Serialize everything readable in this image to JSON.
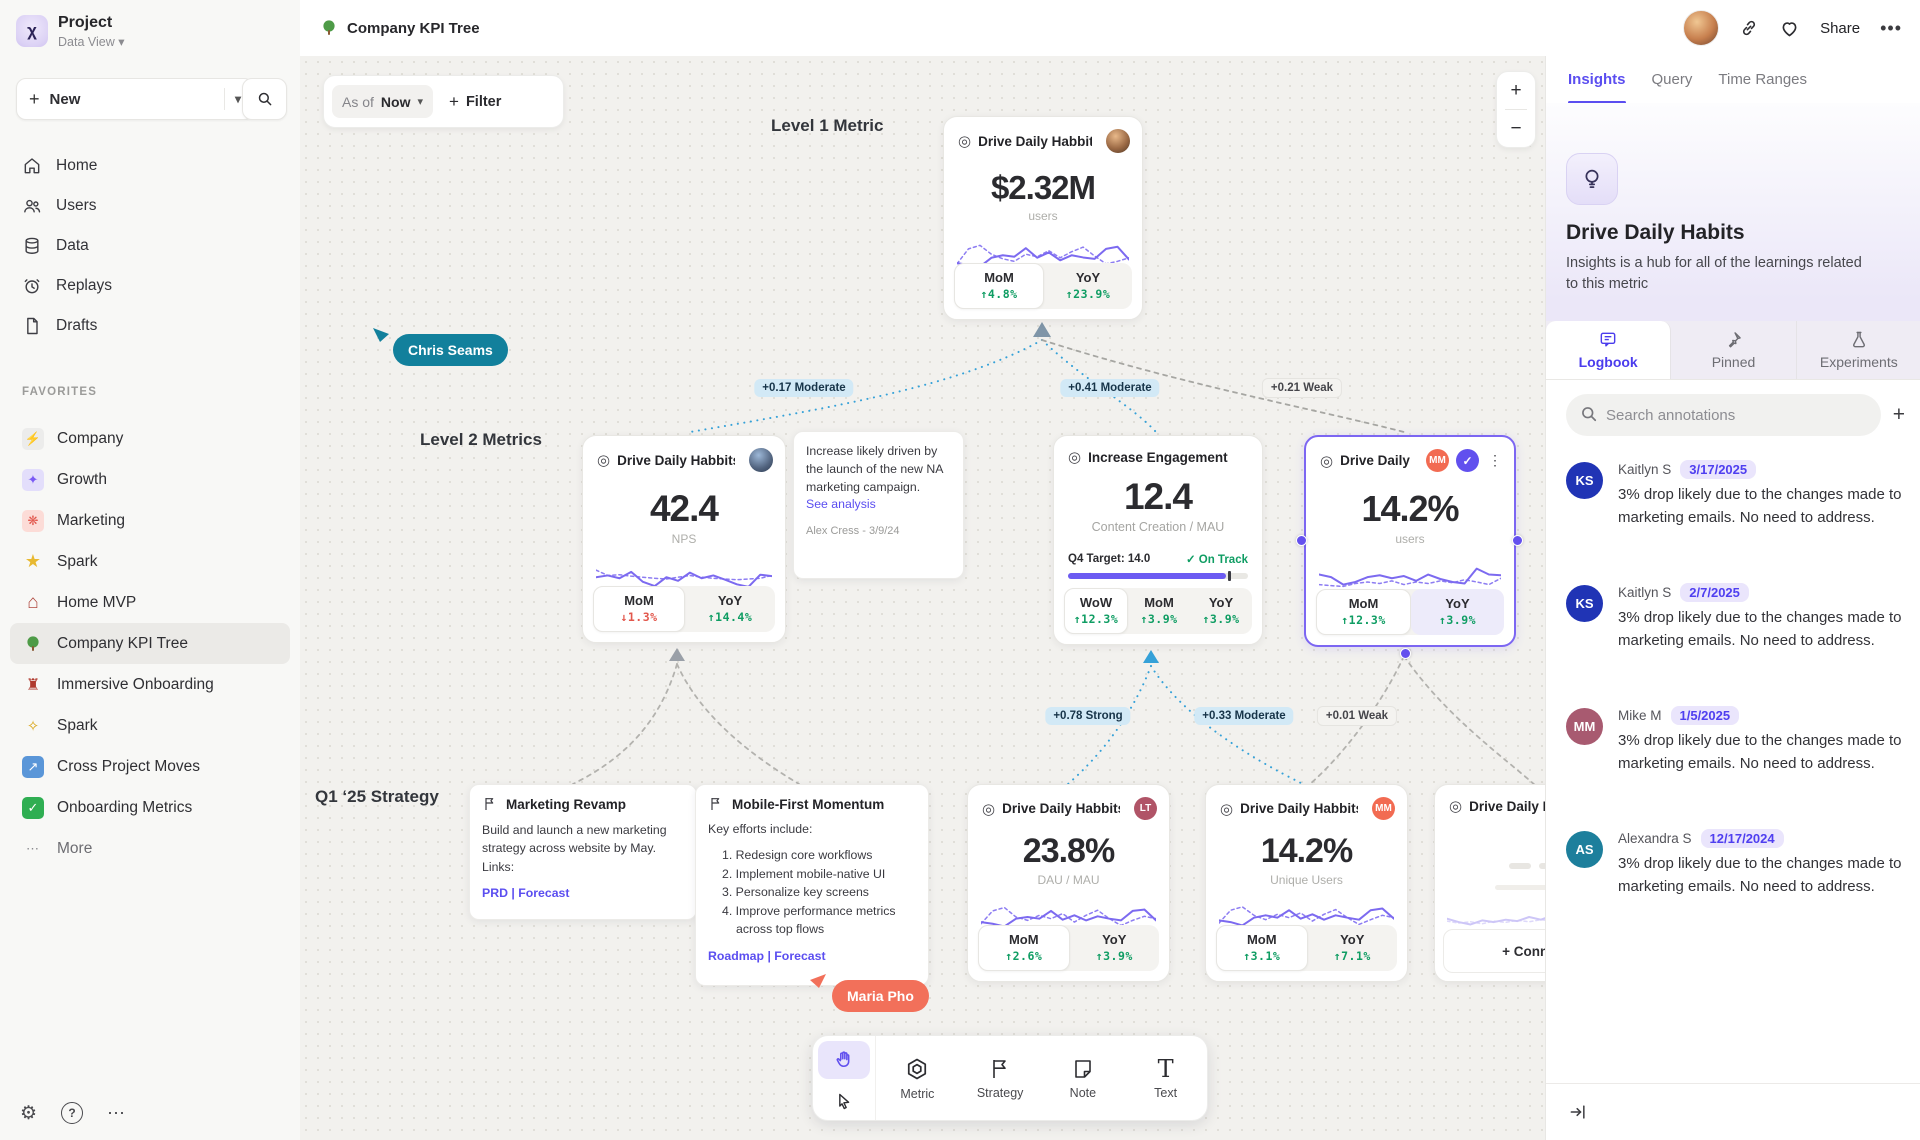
{
  "sidebar": {
    "project_name": "Project",
    "project_view": "Data View",
    "new_label": "New",
    "nav": [
      {
        "label": "Home"
      },
      {
        "label": "Users"
      },
      {
        "label": "Data"
      },
      {
        "label": "Replays"
      },
      {
        "label": "Drafts"
      }
    ],
    "favorites_label": "FAVORITES",
    "favorites": [
      {
        "label": "Company"
      },
      {
        "label": "Growth"
      },
      {
        "label": "Marketing"
      },
      {
        "label": "Spark"
      },
      {
        "label": "Home MVP"
      },
      {
        "label": "Company KPI Tree"
      },
      {
        "label": "Immersive Onboarding"
      },
      {
        "label": "Spark"
      },
      {
        "label": "Cross Project Moves"
      },
      {
        "label": "Onboarding Metrics"
      }
    ],
    "more_label": "More"
  },
  "topbar": {
    "title": "Company KPI Tree",
    "share_label": "Share"
  },
  "canvas": {
    "as_of_label": "As of",
    "as_of_value": "Now",
    "filter_label": "Filter",
    "zoom_in": "+",
    "zoom_out": "−",
    "level_labels": {
      "l1": "Level 1 Metric",
      "l2": "Level 2 Metrics",
      "l3": "Q1 ‘25 Strategy"
    },
    "edge_labels": [
      {
        "text": "+0.17 Moderate",
        "tone": "blue"
      },
      {
        "text": "+0.41 Moderate",
        "tone": "blue"
      },
      {
        "text": "+0.21 Weak",
        "tone": "gray"
      },
      {
        "text": "+0.78 Strong",
        "tone": "blue"
      },
      {
        "text": "+0.33 Moderate",
        "tone": "blue"
      },
      {
        "text": "+0.01 Weak",
        "tone": "gray"
      }
    ],
    "cursors": [
      {
        "name": "Chris Seams",
        "color": "#12809c"
      },
      {
        "name": "Maria Pho",
        "color": "#f2705a"
      }
    ],
    "cards": {
      "level1": {
        "title": "Drive Daily Habbits",
        "value": "$2.32M",
        "unit": "users",
        "stats": [
          {
            "label": "MoM",
            "value": "↑4.8%",
            "color": "#0f9d63"
          },
          {
            "label": "YoY",
            "value": "↑23.9%",
            "color": "#0f9d63"
          }
        ]
      },
      "nps": {
        "title": "Drive Daily Habbits",
        "value": "42.4",
        "unit": "NPS",
        "stats": [
          {
            "label": "MoM",
            "value": "↓1.3%",
            "color": "#e2574c"
          },
          {
            "label": "YoY",
            "value": "↑14.4%",
            "color": "#0f9d63"
          }
        ]
      },
      "engagement": {
        "title": "Increase Engagement",
        "value": "12.4",
        "unit": "Content Creation / MAU",
        "target_label": "Q4 Target: 14.0",
        "status": "✓ On Track",
        "progress_width": "88%",
        "tick_left": "89%",
        "stats": [
          {
            "label": "WoW",
            "value": "↑12.3%",
            "color": "#0f9d63"
          },
          {
            "label": "MoM",
            "value": "↑3.9%",
            "color": "#0f9d63"
          },
          {
            "label": "YoY",
            "value": "↑3.9%",
            "color": "#0f9d63"
          }
        ]
      },
      "selected": {
        "title": "Drive Daily Habb..",
        "badge": "MM",
        "check": "✓",
        "value": "14.2%",
        "unit": "users",
        "stats": [
          {
            "label": "MoM",
            "value": "↑12.3%",
            "color": "#0f9d63"
          },
          {
            "label": "YoY",
            "value": "↑3.9%",
            "color": "#0f9d63"
          }
        ]
      },
      "dau": {
        "title": "Drive Daily Habbits",
        "badge": "LT",
        "value": "23.8%",
        "unit": "DAU / MAU",
        "stats": [
          {
            "label": "MoM",
            "value": "↑2.6%",
            "color": "#0f9d63"
          },
          {
            "label": "YoY",
            "value": "↑3.9%",
            "color": "#0f9d63"
          }
        ]
      },
      "unique": {
        "title": "Drive Daily Habbits",
        "badge": "MM",
        "value": "14.2%",
        "unit": "Unique Users",
        "stats": [
          {
            "label": "MoM",
            "value": "↑3.1%",
            "color": "#0f9d63"
          },
          {
            "label": "YoY",
            "value": "↑7.1%",
            "color": "#0f9d63"
          }
        ]
      },
      "ghost": {
        "title": "Drive Daily Hab",
        "connect_label": "+ Connect"
      }
    },
    "notes": {
      "analysis": {
        "body": "Increase likely driven by the launch of the new NA marketing campaign.",
        "link_label": "See analysis",
        "author": "Alex Cress - 3/9/24"
      },
      "marketing": {
        "title": "Marketing Revamp",
        "body": "Build and launch a new marketing strategy across website by May. Links:",
        "links": "PRD | Forecast"
      },
      "mobile": {
        "title": "Mobile-First Momentum",
        "intro": "Key efforts include:",
        "items": [
          "1. Redesign core workflows",
          "2. Implement mobile-native UI",
          "3. Personalize key screens",
          "4. Improve performance metrics across top flows"
        ],
        "links": "Roadmap | Forecast"
      }
    },
    "tools": [
      {
        "label": "Metric"
      },
      {
        "label": "Strategy"
      },
      {
        "label": "Note"
      },
      {
        "label": "Text"
      }
    ]
  },
  "panel": {
    "tabs": [
      {
        "label": "Insights"
      },
      {
        "label": "Query"
      },
      {
        "label": "Time Ranges"
      }
    ],
    "metric_title": "Drive Daily Habits",
    "description": "Insights is a hub for all of the learnings related to this metric",
    "subtabs": [
      {
        "label": "Logbook"
      },
      {
        "label": "Pinned"
      },
      {
        "label": "Experiments"
      }
    ],
    "search_placeholder": "Search annotations",
    "add_label": "+",
    "annotations": [
      {
        "initials": "KS",
        "name": "Kaitlyn S",
        "date": "3/17/2025",
        "text": "3% drop likely due to the changes made to marketing emails. No need to address.",
        "color": "#2034b5"
      },
      {
        "initials": "KS",
        "name": "Kaitlyn S",
        "date": "2/7/2025",
        "text": "3% drop likely due to the changes made to marketing emails. No need to address.",
        "color": "#2034b5"
      },
      {
        "initials": "MM",
        "name": "Mike M",
        "date": "1/5/2025",
        "text": "3% drop likely due to the changes made to marketing emails. No need to address.",
        "color": "#a85a70"
      },
      {
        "initials": "AS",
        "name": "Alexandra S",
        "date": "12/17/2024",
        "text": "3% drop likely due to the changes made to marketing emails. No need to address.",
        "color": "#1d7f9c"
      }
    ]
  },
  "sparklines": {
    "level1": {
      "solid": [
        0.3,
        0.25,
        0.2,
        0.45,
        0.52,
        0.48,
        0.72,
        0.45,
        0.6,
        0.38,
        0.52,
        0.46,
        0.42,
        0.7,
        0.76,
        0.4
      ],
      "dotted": [
        0.28,
        0.7,
        0.8,
        0.55,
        0.42,
        0.35,
        0.55,
        0.48,
        0.65,
        0.45,
        0.62,
        0.75,
        0.5,
        0.28,
        0.35,
        0.45
      ],
      "solid_color": "#7c6af0",
      "dotted_color": "#8d7df2"
    },
    "nps": {
      "solid": [
        0.55,
        0.6,
        0.52,
        0.7,
        0.42,
        0.3,
        0.55,
        0.45,
        0.68,
        0.52,
        0.6,
        0.48,
        0.35,
        0.28,
        0.62,
        0.58
      ],
      "dotted": [
        0.75,
        0.6,
        0.62,
        0.58,
        0.55,
        0.52,
        0.5,
        0.55,
        0.6,
        0.55,
        0.52,
        0.5,
        0.48,
        0.5,
        0.52,
        0.6
      ],
      "solid_color": "#7c6af0",
      "dotted_color": "#8d7df2"
    },
    "selected": {
      "solid": [
        0.62,
        0.55,
        0.35,
        0.42,
        0.55,
        0.6,
        0.52,
        0.58,
        0.45,
        0.62,
        0.5,
        0.42,
        0.38,
        0.78,
        0.62,
        0.6
      ],
      "dotted": [
        0.35,
        0.32,
        0.3,
        0.38,
        0.42,
        0.38,
        0.45,
        0.35,
        0.42,
        0.38,
        0.45,
        0.4,
        0.48,
        0.42,
        0.35,
        0.52
      ],
      "solid_color": "#7c6af0",
      "dotted_color": "#8d7df2"
    },
    "dau": {
      "solid": [
        0.35,
        0.3,
        0.22,
        0.45,
        0.5,
        0.45,
        0.68,
        0.42,
        0.55,
        0.4,
        0.52,
        0.45,
        0.4,
        0.68,
        0.72,
        0.4
      ],
      "dotted": [
        0.3,
        0.68,
        0.78,
        0.5,
        0.4,
        0.55,
        0.45,
        0.6,
        0.35,
        0.55,
        0.7,
        0.45,
        0.25,
        0.4,
        0.52,
        0.45
      ],
      "solid_color": "#7c6af0",
      "dotted_color": "#8d7df2"
    },
    "unique": {
      "solid": [
        0.4,
        0.35,
        0.25,
        0.48,
        0.55,
        0.48,
        0.7,
        0.45,
        0.58,
        0.42,
        0.55,
        0.48,
        0.42,
        0.7,
        0.75,
        0.45
      ],
      "dotted": [
        0.32,
        0.7,
        0.8,
        0.55,
        0.42,
        0.58,
        0.48,
        0.62,
        0.38,
        0.58,
        0.72,
        0.48,
        0.28,
        0.42,
        0.55,
        0.48
      ],
      "solid_color": "#7c6af0",
      "dotted_color": "#8d7df2"
    },
    "ghost": {
      "solid": [
        0.45,
        0.35,
        0.28,
        0.4,
        0.35,
        0.42,
        0.38,
        0.5,
        0.42,
        0.55,
        0.45,
        0.62,
        0.4,
        0.52,
        0.45,
        0.4
      ],
      "dotted": [
        0.38,
        0.32,
        0.36,
        0.3,
        0.38,
        0.34,
        0.4,
        0.36,
        0.42,
        0.38,
        0.44,
        0.4,
        0.46,
        0.42,
        0.44,
        0.46
      ],
      "solid_color": "#cdc6f7",
      "dotted_color": "#ddd8fa"
    }
  }
}
